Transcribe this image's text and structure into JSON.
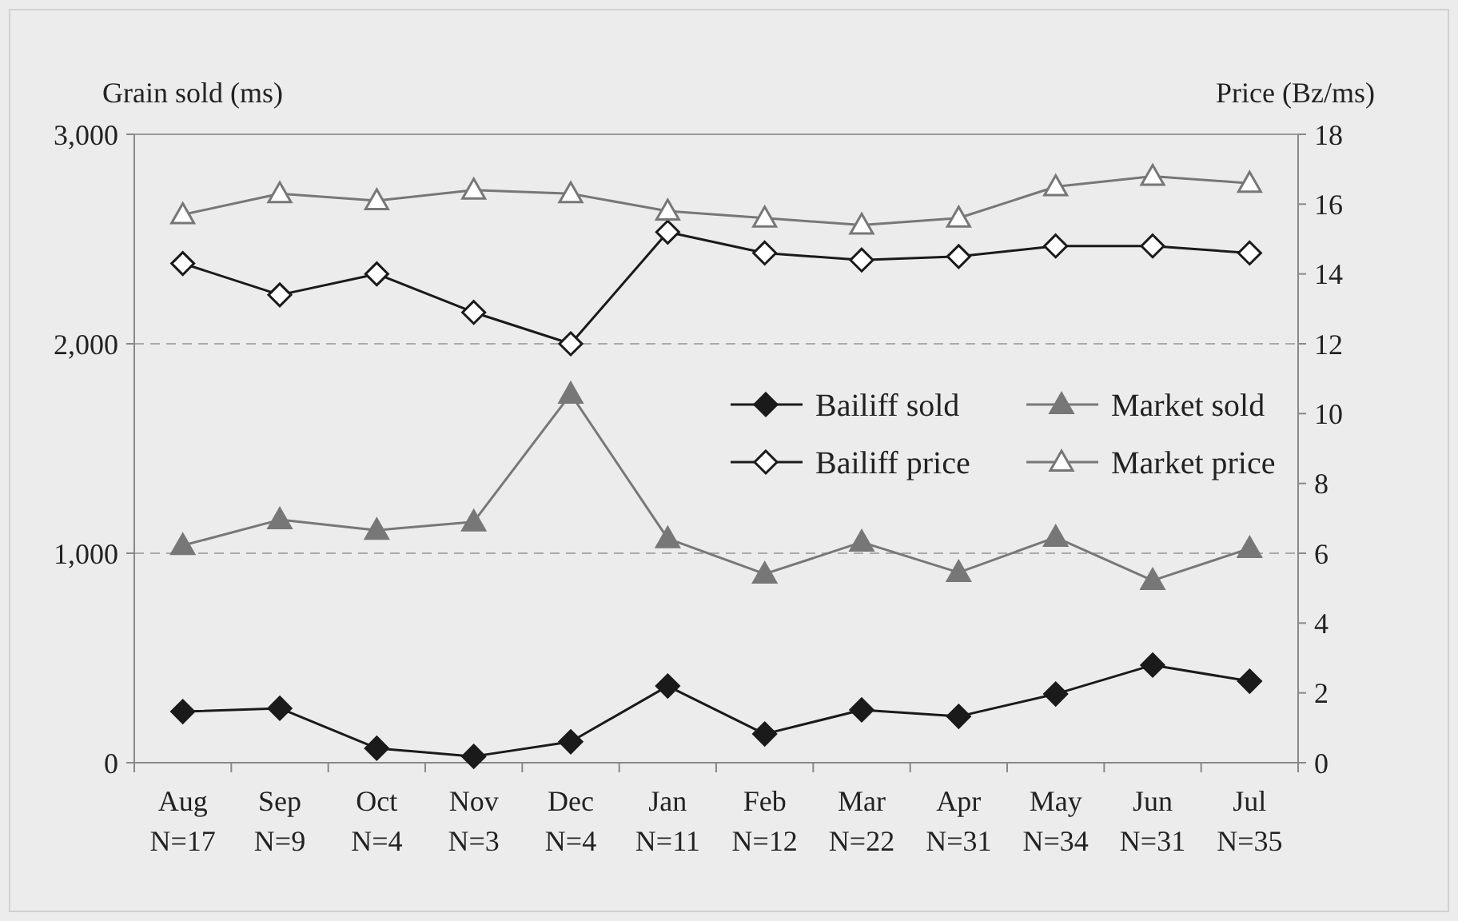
{
  "chart_data": {
    "type": "line",
    "ylabel": "Grain sold (ms)",
    "y2label": "Price (Bz/ms)",
    "categories": [
      "Aug\nN=17",
      "Sep\nN=9",
      "Oct\nN=4",
      "Nov\nN=3",
      "Dec\nN=4",
      "Jan\nN=11",
      "Feb\nN=12",
      "Mar\nN=22",
      "Apr\nN=31",
      "May\nN=34",
      "Jun\nN=31",
      "Jul\nN=35"
    ],
    "series": [
      {
        "name": "Bailiff sold",
        "color": "#1a1a1a",
        "marker": "diamond",
        "values": [
          244,
          260,
          69,
          30,
          100,
          366,
          137,
          252,
          221,
          328,
          466,
          389
        ]
      },
      {
        "name": "Market sold",
        "color": "#777777",
        "marker": "triangle",
        "values": [
          1037,
          1160,
          1110,
          1150,
          1760,
          1070,
          901,
          1053,
          908,
          1076,
          870,
          1023
        ]
      },
      {
        "name": "Bailiff price",
        "color": "#1a1a1a",
        "marker": "diamond",
        "axis": "y2",
        "values": [
          14.3,
          13.4,
          14.0,
          12.9,
          12.0,
          15.2,
          14.6,
          14.4,
          14.5,
          14.8,
          14.8,
          14.6
        ]
      },
      {
        "name": "Market price",
        "color": "#777777",
        "marker": "triangle",
        "axis": "y2",
        "values": [
          15.7,
          16.3,
          16.1,
          16.4,
          16.3,
          15.8,
          15.6,
          15.4,
          15.6,
          16.5,
          16.8,
          16.6
        ]
      }
    ],
    "ylim": [
      0,
      3000
    ],
    "yticks": [
      {
        "value": 0,
        "label": "0"
      },
      {
        "value": 1000,
        "label": "1,000"
      },
      {
        "value": 2000,
        "label": "2,000"
      },
      {
        "value": 3000,
        "label": "3,000"
      }
    ],
    "y2lim": [
      0,
      18
    ],
    "y2ticks": [
      0,
      2,
      4,
      6,
      8,
      10,
      12,
      14,
      16,
      18
    ],
    "grid": "y",
    "legend": "right"
  }
}
